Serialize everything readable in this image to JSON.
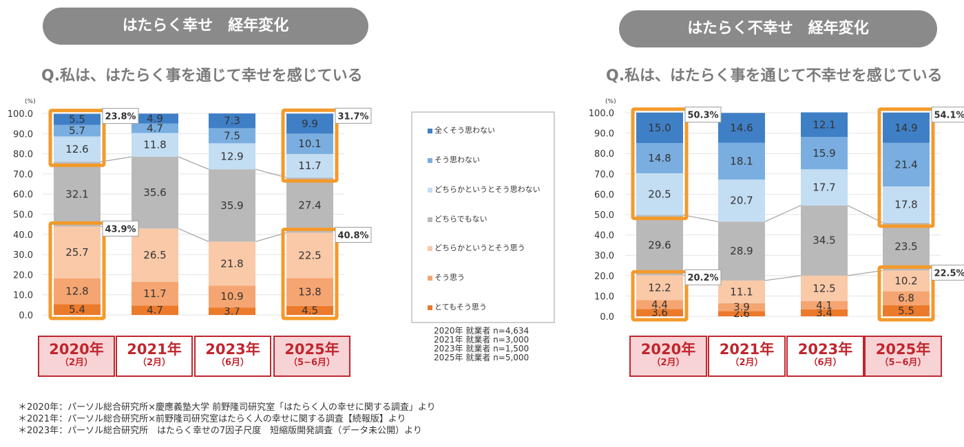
{
  "left_panel": {
    "header": "はたらく幸せ　経年変化",
    "question": "Q.私は、はたらく事を通じて幸せを感じている",
    "callouts": [
      "23.8%",
      "31.7%",
      "43.9%",
      "40.8%"
    ]
  },
  "right_panel": {
    "header": "はたらく不幸せ　経年変化",
    "question": "Q.私は、はたらく事を通じて不幸せを感じている",
    "callouts": [
      "50.3%",
      "54.1%",
      "20.2%",
      "22.5%"
    ]
  },
  "axis": {
    "unit": "(%)",
    "ticks": [
      "100.0",
      "90.0",
      "80.0",
      "70.0",
      "60.0",
      "50.0",
      "40.0",
      "30.0",
      "20.0",
      "10.0",
      "0.0"
    ]
  },
  "years": [
    {
      "year": "2020年",
      "month": "（2月）"
    },
    {
      "year": "2021年",
      "month": "（2月）"
    },
    {
      "year": "2023年",
      "month": "（6月）"
    },
    {
      "year": "2025年",
      "month": "（5−6月）"
    }
  ],
  "legend": [
    {
      "label": "全くそう思わない",
      "color": "#3f7fc6"
    },
    {
      "label": "そう思わない",
      "color": "#7aaee0"
    },
    {
      "label": "どちらかというとそう思わない",
      "color": "#c3ddf3"
    },
    {
      "label": "どちらでもない",
      "color": "#b9b9b9"
    },
    {
      "label": "どちらかというとそう思う",
      "color": "#f9c9a8"
    },
    {
      "label": "そう思う",
      "color": "#f5a571"
    },
    {
      "label": "とてもそう思う",
      "color": "#ec7a2b"
    }
  ],
  "samples": [
    "2020年 就業者 n=4,634",
    "2021年 就業者 n=3,000",
    "2023年 就業者 n=1,500",
    "2025年 就業者 n=5,000"
  ],
  "notes": [
    "＊2020年：パーソル総合研究所×慶應義塾大学 前野隆司研究室「はたらく人の幸せに関する調査」より",
    "＊2021年：パーソル総合研究所×前野隆司研究室はたらく人の幸せに関する調査【続報版】より",
    "＊2023年：パーソル総合研究所　はたらく幸せの7因子尺度　短縮版開発調査（データ未公開）より"
  ],
  "chart_data": [
    {
      "type": "bar",
      "stacked": true,
      "title": "はたらく幸せ　経年変化",
      "ylim": [
        0,
        100
      ],
      "categories": [
        "2020年（2月）",
        "2021年（2月）",
        "2023年（6月）",
        "2025年（5−6月）"
      ],
      "series": [
        {
          "name": "とてもそう思う",
          "values": [
            5.4,
            4.7,
            3.7,
            4.5
          ]
        },
        {
          "name": "そう思う",
          "values": [
            12.8,
            11.7,
            10.9,
            13.8
          ]
        },
        {
          "name": "どちらかというとそう思う",
          "values": [
            25.7,
            26.5,
            21.8,
            22.5
          ]
        },
        {
          "name": "どちらでもない",
          "values": [
            32.1,
            35.6,
            35.9,
            27.4
          ]
        },
        {
          "name": "どちらかというとそう思わない",
          "values": [
            12.6,
            11.8,
            12.9,
            11.7
          ]
        },
        {
          "name": "そう思わない",
          "values": [
            5.7,
            4.7,
            7.5,
            10.1
          ]
        },
        {
          "name": "全くそう思わない",
          "values": [
            5.5,
            4.9,
            7.3,
            9.9
          ]
        }
      ]
    },
    {
      "type": "bar",
      "stacked": true,
      "title": "はたらく不幸せ　経年変化",
      "ylim": [
        0,
        100
      ],
      "categories": [
        "2020年（2月）",
        "2021年（2月）",
        "2023年（6月）",
        "2025年（5−6月）"
      ],
      "series": [
        {
          "name": "とてもそう思う",
          "values": [
            3.6,
            2.6,
            3.4,
            5.5
          ]
        },
        {
          "name": "そう思う",
          "values": [
            4.4,
            3.9,
            4.1,
            6.8
          ]
        },
        {
          "name": "どちらかというとそう思う",
          "values": [
            12.2,
            11.1,
            12.5,
            10.2
          ]
        },
        {
          "name": "どちらでもない",
          "values": [
            29.6,
            28.9,
            34.5,
            23.5
          ]
        },
        {
          "name": "どちらかというとそう思わない",
          "values": [
            20.5,
            20.7,
            17.7,
            17.8
          ]
        },
        {
          "name": "そう思わない",
          "values": [
            14.8,
            18.1,
            15.9,
            21.4
          ]
        },
        {
          "name": "全くそう思わない",
          "values": [
            15.0,
            14.6,
            12.1,
            14.9
          ]
        }
      ]
    }
  ]
}
